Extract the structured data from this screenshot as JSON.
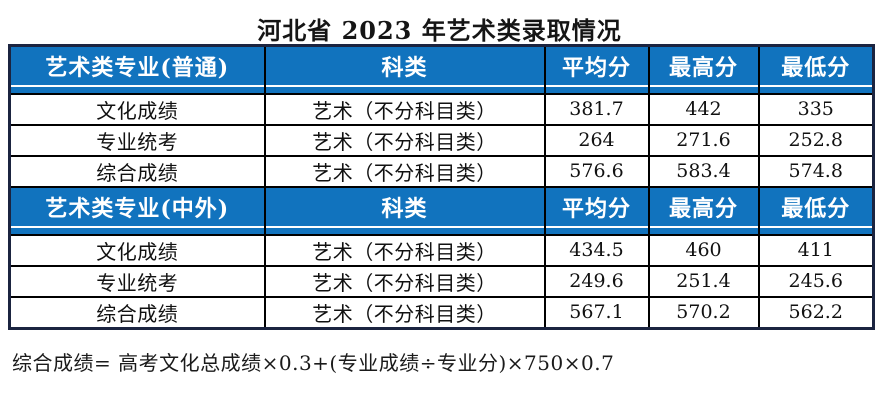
{
  "chart_data": {
    "type": "table",
    "title": "河北省 2023 年艺术类录取情况",
    "columns": [
      "专业",
      "科类",
      "平均分",
      "最高分",
      "最低分"
    ],
    "sections": [
      {
        "header": [
          "艺术类专业(普通)",
          "科类",
          "平均分",
          "最高分",
          "最低分"
        ],
        "rows": [
          [
            "文化成绩",
            "艺术（不分科目类）",
            "381.7",
            "442",
            "335"
          ],
          [
            "专业统考",
            "艺术（不分科目类）",
            "264",
            "271.6",
            "252.8"
          ],
          [
            "综合成绩",
            "艺术（不分科目类）",
            "576.6",
            "583.4",
            "574.8"
          ]
        ]
      },
      {
        "header": [
          "艺术类专业(中外)",
          "科类",
          "平均分",
          "最高分",
          "最低分"
        ],
        "rows": [
          [
            "文化成绩",
            "艺术（不分科目类）",
            "434.5",
            "460",
            "411"
          ],
          [
            "专业统考",
            "艺术（不分科目类）",
            "249.6",
            "251.4",
            "245.6"
          ],
          [
            "综合成绩",
            "艺术（不分科目类）",
            "567.1",
            "570.2",
            "562.2"
          ]
        ]
      }
    ],
    "footnote": "综合成绩= 高考文化总成绩×0.3+(专业成绩÷专业分)×750×0.7"
  },
  "colors": {
    "header_bg": "#1173be",
    "header_text": "#ffffff",
    "grid_line": "#000000",
    "outer_border": "#1b2440",
    "body_text": "#111111",
    "page_bg": "#ffffff"
  }
}
